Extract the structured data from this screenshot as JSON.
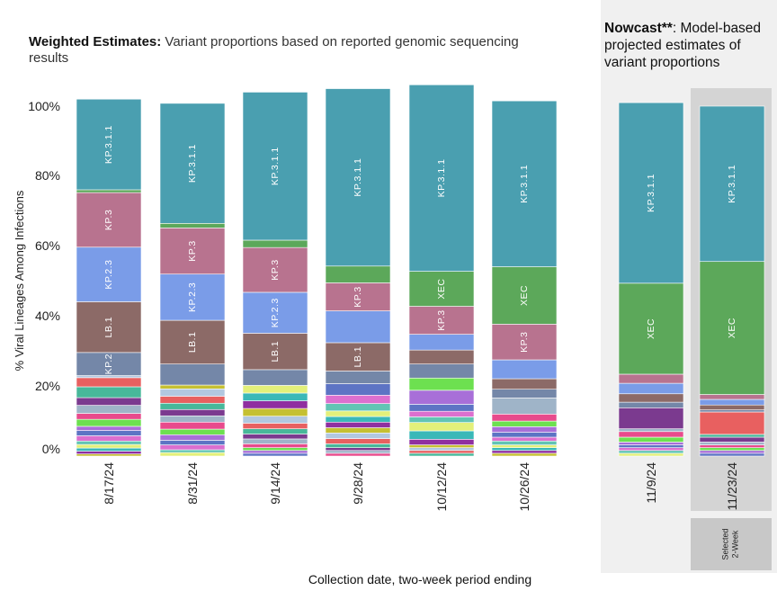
{
  "titles": {
    "weighted_bold": "Weighted Estimates:",
    "weighted_rest": " Variant proportions based on reported genomic sequencing results",
    "nowcast_bold": "Nowcast",
    "nowcast_sup": "**",
    "nowcast_rest": ": Model-based projected estimates of variant proportions",
    "selected_label": "Selected\n2-Week"
  },
  "colors": {
    "KP.3.1.1": "#4a9fb0",
    "KP.3": "#b8738f",
    "KP.2.3": "#7a9ce8",
    "LB.1": "#8c6a67",
    "XEC": "#5ca85a",
    "KP.2": "#7487a8",
    "other_palette": [
      "#c5c032",
      "#8f2fa0",
      "#3ab8b8",
      "#e3f07a",
      "#62c4b4",
      "#dc6fcf",
      "#5d74c4",
      "#a86fd8",
      "#6de050",
      "#e84a8c",
      "#9fb4c8",
      "#7b3a8f",
      "#48b89a",
      "#e86060",
      "#b2c8e0"
    ]
  },
  "chart_data": {
    "type": "bar",
    "stacked": true,
    "title": "",
    "xlabel": "Collection date, two-week period ending",
    "ylabel": "% Viral Lineages Among Infections",
    "ylim": [
      0,
      100
    ],
    "yticks": [
      "0%",
      "20%",
      "40%",
      "60%",
      "80%",
      "100%"
    ],
    "categories": [
      "8/17/24",
      "8/31/24",
      "9/14/24",
      "9/28/24",
      "10/12/24",
      "10/26/24",
      "11/9/24",
      "11/23/24"
    ],
    "groups": [
      "Weighted Estimates",
      "Weighted Estimates",
      "Weighted Estimates",
      "Weighted Estimates",
      "Weighted Estimates",
      "Weighted Estimates",
      "Nowcast",
      "Nowcast"
    ],
    "selected_category": "11/23/24",
    "bars": [
      {
        "date": "8/17/24",
        "segments": [
          {
            "name": "other",
            "value": 0.6
          },
          {
            "name": "other",
            "value": 0.8
          },
          {
            "name": "other",
            "value": 0.9
          },
          {
            "name": "other",
            "value": 1.0
          },
          {
            "name": "other",
            "value": 1.0
          },
          {
            "name": "other",
            "value": 1.5
          },
          {
            "name": "other",
            "value": 1.5
          },
          {
            "name": "other",
            "value": 1.2
          },
          {
            "name": "other",
            "value": 2.0
          },
          {
            "name": "other",
            "value": 1.7
          },
          {
            "name": "other",
            "value": 2.3
          },
          {
            "name": "other",
            "value": 2.2
          },
          {
            "name": "other",
            "value": 3.1
          },
          {
            "name": "other",
            "value": 2.6
          },
          {
            "name": "other",
            "value": 0.6
          },
          {
            "name": "KP.2",
            "value": 6.6,
            "label": "KP.2"
          },
          {
            "name": "LB.1",
            "value": 14.5,
            "label": "LB.1"
          },
          {
            "name": "KP.2.3",
            "value": 15.6,
            "label": "KP.2.3"
          },
          {
            "name": "KP.3",
            "value": 15.6,
            "label": "KP.3"
          },
          {
            "name": "XEC",
            "value": 0.8
          },
          {
            "name": "KP.3.1.1",
            "value": 25.9,
            "label": "KP.3.1.1"
          }
        ]
      },
      {
        "date": "8/31/24",
        "segments": [
          {
            "name": "other",
            "value": 1.0
          },
          {
            "name": "other",
            "value": 0.8
          },
          {
            "name": "other",
            "value": 1.4
          },
          {
            "name": "other",
            "value": 1.3
          },
          {
            "name": "other",
            "value": 1.6
          },
          {
            "name": "other",
            "value": 1.6
          },
          {
            "name": "other",
            "value": 2.0
          },
          {
            "name": "other",
            "value": 1.8
          },
          {
            "name": "other",
            "value": 1.8
          },
          {
            "name": "other",
            "value": 1.8
          },
          {
            "name": "other",
            "value": 2.0
          },
          {
            "name": "other",
            "value": 2.1
          },
          {
            "name": "other",
            "value": 1.1
          },
          {
            "name": "KP.2",
            "value": 6.0
          },
          {
            "name": "LB.1",
            "value": 12.5,
            "label": "LB.1"
          },
          {
            "name": "KP.2.3",
            "value": 13.2,
            "label": "KP.2.3"
          },
          {
            "name": "KP.3",
            "value": 13.2,
            "label": "KP.3"
          },
          {
            "name": "XEC",
            "value": 1.3
          },
          {
            "name": "KP.3.1.1",
            "value": 34.3,
            "label": "KP.3.1.1"
          }
        ]
      },
      {
        "date": "9/14/24",
        "segments": [
          {
            "name": "other",
            "value": 0.8
          },
          {
            "name": "other",
            "value": 0.8
          },
          {
            "name": "other",
            "value": 0.8
          },
          {
            "name": "other",
            "value": 1.1
          },
          {
            "name": "other",
            "value": 1.4
          },
          {
            "name": "other",
            "value": 1.4
          },
          {
            "name": "other",
            "value": 1.5
          },
          {
            "name": "other",
            "value": 1.6
          },
          {
            "name": "other",
            "value": 2.0
          },
          {
            "name": "other",
            "value": 2.2
          },
          {
            "name": "other",
            "value": 2.2
          },
          {
            "name": "other",
            "value": 2.2
          },
          {
            "name": "other",
            "value": 2.2
          },
          {
            "name": "KP.2",
            "value": 4.5
          },
          {
            "name": "LB.1",
            "value": 10.4,
            "label": "LB.1"
          },
          {
            "name": "KP.2.3",
            "value": 11.7,
            "label": "KP.2.3"
          },
          {
            "name": "KP.3",
            "value": 12.8,
            "label": "KP.3"
          },
          {
            "name": "XEC",
            "value": 2.1
          },
          {
            "name": "KP.3.1.1",
            "value": 42.3,
            "label": "KP.3.1.1"
          }
        ]
      },
      {
        "date": "9/28/24",
        "segments": [
          {
            "name": "other",
            "value": 0.8
          },
          {
            "name": "other",
            "value": 0.8
          },
          {
            "name": "other",
            "value": 0.8
          },
          {
            "name": "other",
            "value": 1.1
          },
          {
            "name": "other",
            "value": 1.5
          },
          {
            "name": "other",
            "value": 1.6
          },
          {
            "name": "other",
            "value": 1.5
          },
          {
            "name": "other",
            "value": 1.6
          },
          {
            "name": "other",
            "value": 1.6
          },
          {
            "name": "other",
            "value": 1.6
          },
          {
            "name": "other",
            "value": 2.1
          },
          {
            "name": "other",
            "value": 2.4
          },
          {
            "name": "other",
            "value": 3.3
          },
          {
            "name": "KP.2",
            "value": 3.6
          },
          {
            "name": "LB.1",
            "value": 8.1,
            "label": "LB.1"
          },
          {
            "name": "KP.2.3",
            "value": 9.1
          },
          {
            "name": "KP.3",
            "value": 8.0,
            "label": "KP.3"
          },
          {
            "name": "XEC",
            "value": 4.8
          },
          {
            "name": "KP.3.1.1",
            "value": 50.7,
            "label": "KP.3.1.1"
          }
        ]
      },
      {
        "date": "10/12/24",
        "segments": [
          {
            "name": "other",
            "value": 0.8
          },
          {
            "name": "other",
            "value": 0.8
          },
          {
            "name": "other",
            "value": 0.8
          },
          {
            "name": "other",
            "value": 0.8
          },
          {
            "name": "other",
            "value": 1.6
          },
          {
            "name": "other",
            "value": 2.4
          },
          {
            "name": "other",
            "value": 2.4
          },
          {
            "name": "other",
            "value": 1.6
          },
          {
            "name": "other",
            "value": 1.6
          },
          {
            "name": "other",
            "value": 2.0
          },
          {
            "name": "other",
            "value": 4.0
          },
          {
            "name": "other",
            "value": 3.5
          },
          {
            "name": "KP.2",
            "value": 4.0
          },
          {
            "name": "LB.1",
            "value": 4.0
          },
          {
            "name": "KP.2.3",
            "value": 4.5
          },
          {
            "name": "KP.3",
            "value": 8.0,
            "label": "KP.3"
          },
          {
            "name": "XEC",
            "value": 10.0,
            "label": "XEC"
          },
          {
            "name": "KP.3.1.1",
            "value": 53.3,
            "label": "KP.3.1.1"
          }
        ]
      },
      {
        "date": "10/26/24",
        "segments": [
          {
            "name": "other",
            "value": 0.8
          },
          {
            "name": "other",
            "value": 0.8
          },
          {
            "name": "other",
            "value": 0.8
          },
          {
            "name": "other",
            "value": 0.8
          },
          {
            "name": "other",
            "value": 1.1
          },
          {
            "name": "other",
            "value": 1.1
          },
          {
            "name": "other",
            "value": 1.4
          },
          {
            "name": "other",
            "value": 1.6
          },
          {
            "name": "other",
            "value": 1.6
          },
          {
            "name": "other",
            "value": 2.0
          },
          {
            "name": "other",
            "value": 4.6
          },
          {
            "name": "KP.2",
            "value": 2.5
          },
          {
            "name": "LB.1",
            "value": 3.0
          },
          {
            "name": "KP.2.3",
            "value": 5.4
          },
          {
            "name": "KP.3",
            "value": 10.2,
            "label": "KP.3"
          },
          {
            "name": "XEC",
            "value": 16.4,
            "label": "XEC"
          },
          {
            "name": "KP.3.1.1",
            "value": 47.4,
            "label": "KP.3.1.1"
          }
        ]
      },
      {
        "date": "11/9/24",
        "segments": [
          {
            "name": "other",
            "value": 0.8
          },
          {
            "name": "other",
            "value": 0.8
          },
          {
            "name": "other",
            "value": 0.8
          },
          {
            "name": "other",
            "value": 0.8
          },
          {
            "name": "other",
            "value": 0.8
          },
          {
            "name": "other",
            "value": 1.4
          },
          {
            "name": "other",
            "value": 1.6
          },
          {
            "name": "other",
            "value": 0.8
          },
          {
            "name": "other",
            "value": 6.0
          },
          {
            "name": "KP.2",
            "value": 1.6
          },
          {
            "name": "LB.1",
            "value": 2.4
          },
          {
            "name": "KP.2.3",
            "value": 3.0
          },
          {
            "name": "KP.3",
            "value": 2.6
          },
          {
            "name": "XEC",
            "value": 26.0,
            "label": "XEC"
          },
          {
            "name": "KP.3.1.1",
            "value": 51.6,
            "label": "KP.3.1.1"
          }
        ]
      },
      {
        "date": "11/23/24",
        "segments": [
          {
            "name": "other",
            "value": 0.8
          },
          {
            "name": "other",
            "value": 0.8
          },
          {
            "name": "other",
            "value": 0.8
          },
          {
            "name": "other",
            "value": 0.8
          },
          {
            "name": "other",
            "value": 0.8
          },
          {
            "name": "other",
            "value": 1.4
          },
          {
            "name": "other",
            "value": 0.8
          },
          {
            "name": "other",
            "value": 6.4
          },
          {
            "name": "KP.2",
            "value": 0.6
          },
          {
            "name": "LB.1",
            "value": 1.4
          },
          {
            "name": "KP.2.3",
            "value": 1.6
          },
          {
            "name": "KP.3",
            "value": 1.4
          },
          {
            "name": "XEC",
            "value": 38.0,
            "label": "XEC"
          },
          {
            "name": "KP.3.1.1",
            "value": 44.4,
            "label": "KP.3.1.1"
          }
        ]
      }
    ]
  }
}
